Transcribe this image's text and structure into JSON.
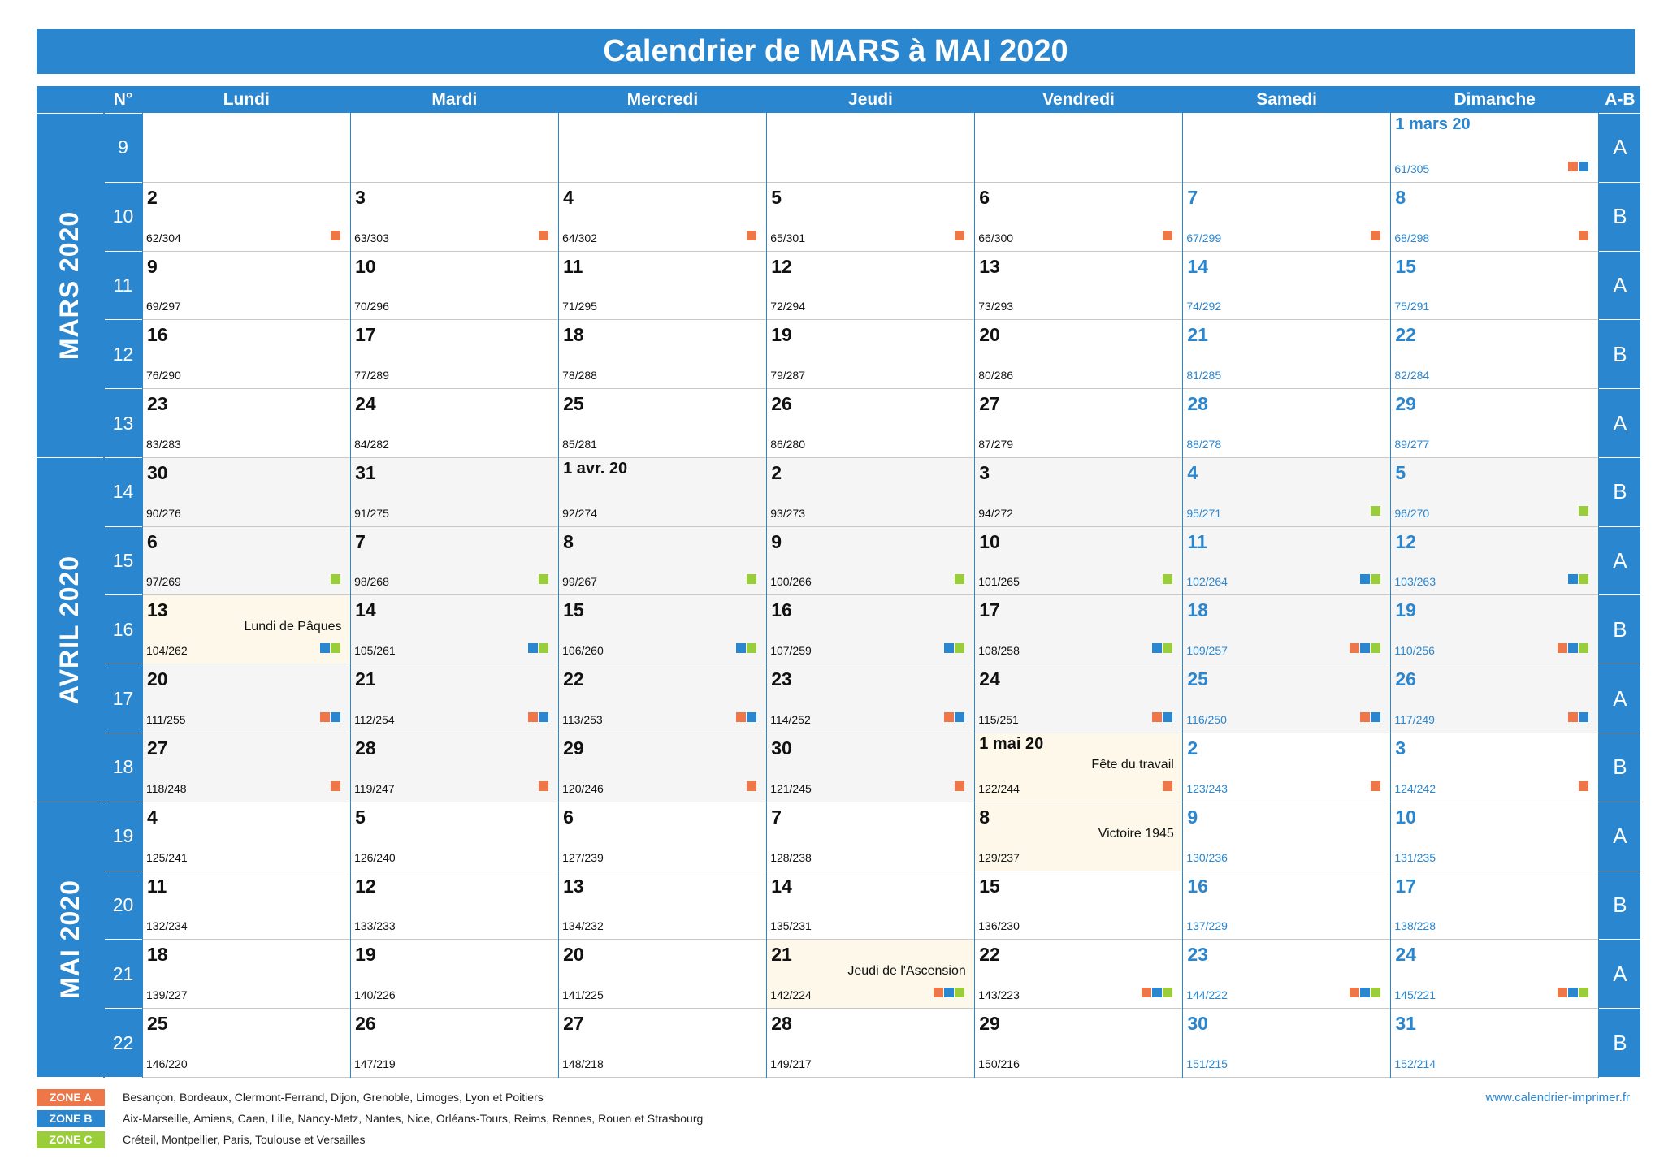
{
  "title": "Calendrier de MARS à MAI 2020",
  "headers": {
    "num": "N°",
    "days": [
      "Lundi",
      "Mardi",
      "Mercredi",
      "Jeudi",
      "Vendredi",
      "Samedi",
      "Dimanche"
    ],
    "ab": "A-B"
  },
  "months": [
    {
      "label": "MARS 2020",
      "start": 0,
      "span": 5
    },
    {
      "label": "AVRIL 2020",
      "start": 5,
      "span": 5
    },
    {
      "label": "MAI 2020",
      "start": 10,
      "span": 4
    }
  ],
  "weeks": [
    {
      "num": "9",
      "ab": "A",
      "days": [
        null,
        null,
        null,
        null,
        null,
        null,
        {
          "d": "1 mars 20",
          "c": "61/305",
          "z": [
            "A",
            "B"
          ]
        }
      ]
    },
    {
      "num": "10",
      "ab": "B",
      "days": [
        {
          "d": "2",
          "c": "62/304",
          "z": [
            "A"
          ]
        },
        {
          "d": "3",
          "c": "63/303",
          "z": [
            "A"
          ]
        },
        {
          "d": "4",
          "c": "64/302",
          "z": [
            "A"
          ]
        },
        {
          "d": "5",
          "c": "65/301",
          "z": [
            "A"
          ]
        },
        {
          "d": "6",
          "c": "66/300",
          "z": [
            "A"
          ]
        },
        {
          "d": "7",
          "c": "67/299",
          "z": [
            "A"
          ]
        },
        {
          "d": "8",
          "c": "68/298",
          "z": [
            "A"
          ]
        }
      ]
    },
    {
      "num": "11",
      "ab": "A",
      "days": [
        {
          "d": "9",
          "c": "69/297"
        },
        {
          "d": "10",
          "c": "70/296"
        },
        {
          "d": "11",
          "c": "71/295"
        },
        {
          "d": "12",
          "c": "72/294"
        },
        {
          "d": "13",
          "c": "73/293"
        },
        {
          "d": "14",
          "c": "74/292"
        },
        {
          "d": "15",
          "c": "75/291"
        }
      ]
    },
    {
      "num": "12",
      "ab": "B",
      "days": [
        {
          "d": "16",
          "c": "76/290"
        },
        {
          "d": "17",
          "c": "77/289"
        },
        {
          "d": "18",
          "c": "78/288"
        },
        {
          "d": "19",
          "c": "79/287"
        },
        {
          "d": "20",
          "c": "80/286"
        },
        {
          "d": "21",
          "c": "81/285"
        },
        {
          "d": "22",
          "c": "82/284"
        }
      ]
    },
    {
      "num": "13",
      "ab": "A",
      "days": [
        {
          "d": "23",
          "c": "83/283"
        },
        {
          "d": "24",
          "c": "84/282"
        },
        {
          "d": "25",
          "c": "85/281"
        },
        {
          "d": "26",
          "c": "86/280"
        },
        {
          "d": "27",
          "c": "87/279"
        },
        {
          "d": "28",
          "c": "88/278"
        },
        {
          "d": "29",
          "c": "89/277"
        }
      ]
    },
    {
      "num": "14",
      "ab": "B",
      "days": [
        {
          "d": "30",
          "c": "90/276",
          "apr": true
        },
        {
          "d": "31",
          "c": "91/275",
          "apr": true
        },
        {
          "d": "1 avr. 20",
          "c": "92/274",
          "apr": true
        },
        {
          "d": "2",
          "c": "93/273",
          "apr": true
        },
        {
          "d": "3",
          "c": "94/272",
          "apr": true
        },
        {
          "d": "4",
          "c": "95/271",
          "z": [
            "C"
          ],
          "apr": true
        },
        {
          "d": "5",
          "c": "96/270",
          "z": [
            "C"
          ],
          "apr": true
        }
      ]
    },
    {
      "num": "15",
      "ab": "A",
      "days": [
        {
          "d": "6",
          "c": "97/269",
          "z": [
            "C"
          ],
          "apr": true
        },
        {
          "d": "7",
          "c": "98/268",
          "z": [
            "C"
          ],
          "apr": true
        },
        {
          "d": "8",
          "c": "99/267",
          "z": [
            "C"
          ],
          "apr": true
        },
        {
          "d": "9",
          "c": "100/266",
          "z": [
            "C"
          ],
          "apr": true
        },
        {
          "d": "10",
          "c": "101/265",
          "z": [
            "C"
          ],
          "apr": true
        },
        {
          "d": "11",
          "c": "102/264",
          "z": [
            "B",
            "C"
          ],
          "apr": true
        },
        {
          "d": "12",
          "c": "103/263",
          "z": [
            "B",
            "C"
          ],
          "apr": true
        }
      ]
    },
    {
      "num": "16",
      "ab": "B",
      "days": [
        {
          "d": "13",
          "c": "104/262",
          "z": [
            "B",
            "C"
          ],
          "h": "Lundi de Pâques",
          "apr": true
        },
        {
          "d": "14",
          "c": "105/261",
          "z": [
            "B",
            "C"
          ],
          "apr": true
        },
        {
          "d": "15",
          "c": "106/260",
          "z": [
            "B",
            "C"
          ],
          "apr": true
        },
        {
          "d": "16",
          "c": "107/259",
          "z": [
            "B",
            "C"
          ],
          "apr": true
        },
        {
          "d": "17",
          "c": "108/258",
          "z": [
            "B",
            "C"
          ],
          "apr": true
        },
        {
          "d": "18",
          "c": "109/257",
          "z": [
            "A",
            "B",
            "C"
          ],
          "apr": true
        },
        {
          "d": "19",
          "c": "110/256",
          "z": [
            "A",
            "B",
            "C"
          ],
          "apr": true
        }
      ]
    },
    {
      "num": "17",
      "ab": "A",
      "days": [
        {
          "d": "20",
          "c": "111/255",
          "z": [
            "A",
            "B"
          ],
          "apr": true
        },
        {
          "d": "21",
          "c": "112/254",
          "z": [
            "A",
            "B"
          ],
          "apr": true
        },
        {
          "d": "22",
          "c": "113/253",
          "z": [
            "A",
            "B"
          ],
          "apr": true
        },
        {
          "d": "23",
          "c": "114/252",
          "z": [
            "A",
            "B"
          ],
          "apr": true
        },
        {
          "d": "24",
          "c": "115/251",
          "z": [
            "A",
            "B"
          ],
          "apr": true
        },
        {
          "d": "25",
          "c": "116/250",
          "z": [
            "A",
            "B"
          ],
          "apr": true
        },
        {
          "d": "26",
          "c": "117/249",
          "z": [
            "A",
            "B"
          ],
          "apr": true
        }
      ]
    },
    {
      "num": "18",
      "ab": "B",
      "days": [
        {
          "d": "27",
          "c": "118/248",
          "z": [
            "A"
          ],
          "apr": true
        },
        {
          "d": "28",
          "c": "119/247",
          "z": [
            "A"
          ],
          "apr": true
        },
        {
          "d": "29",
          "c": "120/246",
          "z": [
            "A"
          ],
          "apr": true
        },
        {
          "d": "30",
          "c": "121/245",
          "z": [
            "A"
          ],
          "apr": true
        },
        {
          "d": "1 mai 20",
          "c": "122/244",
          "z": [
            "A"
          ],
          "h": "Fête du travail"
        },
        {
          "d": "2",
          "c": "123/243",
          "z": [
            "A"
          ]
        },
        {
          "d": "3",
          "c": "124/242",
          "z": [
            "A"
          ]
        }
      ]
    },
    {
      "num": "19",
      "ab": "A",
      "days": [
        {
          "d": "4",
          "c": "125/241"
        },
        {
          "d": "5",
          "c": "126/240"
        },
        {
          "d": "6",
          "c": "127/239"
        },
        {
          "d": "7",
          "c": "128/238"
        },
        {
          "d": "8",
          "c": "129/237",
          "h": "Victoire 1945"
        },
        {
          "d": "9",
          "c": "130/236"
        },
        {
          "d": "10",
          "c": "131/235"
        }
      ]
    },
    {
      "num": "20",
      "ab": "B",
      "days": [
        {
          "d": "11",
          "c": "132/234"
        },
        {
          "d": "12",
          "c": "133/233"
        },
        {
          "d": "13",
          "c": "134/232"
        },
        {
          "d": "14",
          "c": "135/231"
        },
        {
          "d": "15",
          "c": "136/230"
        },
        {
          "d": "16",
          "c": "137/229"
        },
        {
          "d": "17",
          "c": "138/228"
        }
      ]
    },
    {
      "num": "21",
      "ab": "A",
      "days": [
        {
          "d": "18",
          "c": "139/227"
        },
        {
          "d": "19",
          "c": "140/226"
        },
        {
          "d": "20",
          "c": "141/225"
        },
        {
          "d": "21",
          "c": "142/224",
          "z": [
            "A",
            "B",
            "C"
          ],
          "h": "Jeudi de l'Ascension"
        },
        {
          "d": "22",
          "c": "143/223",
          "z": [
            "A",
            "B",
            "C"
          ]
        },
        {
          "d": "23",
          "c": "144/222",
          "z": [
            "A",
            "B",
            "C"
          ]
        },
        {
          "d": "24",
          "c": "145/221",
          "z": [
            "A",
            "B",
            "C"
          ]
        }
      ]
    },
    {
      "num": "22",
      "ab": "B",
      "days": [
        {
          "d": "25",
          "c": "146/220"
        },
        {
          "d": "26",
          "c": "147/219"
        },
        {
          "d": "27",
          "c": "148/218"
        },
        {
          "d": "28",
          "c": "149/217"
        },
        {
          "d": "29",
          "c": "150/216"
        },
        {
          "d": "30",
          "c": "151/215"
        },
        {
          "d": "31",
          "c": "152/214"
        }
      ]
    }
  ],
  "zone_colors": {
    "A": "#ee7749",
    "B": "#2a86cf",
    "C": "#9acd3a"
  },
  "legend": [
    {
      "zone": "A",
      "label": "ZONE A",
      "text": "Besançon, Bordeaux, Clermont-Ferrand, Dijon, Grenoble, Limoges, Lyon et Poitiers"
    },
    {
      "zone": "B",
      "label": "ZONE B",
      "text": "Aix-Marseille, Amiens, Caen, Lille, Nancy-Metz, Nantes, Nice, Orléans-Tours, Reims, Rennes, Rouen et Strasbourg"
    },
    {
      "zone": "C",
      "label": "ZONE C",
      "text": "Créteil, Montpellier, Paris, Toulouse et Versailles"
    }
  ],
  "website": "www.calendrier-imprimer.fr"
}
